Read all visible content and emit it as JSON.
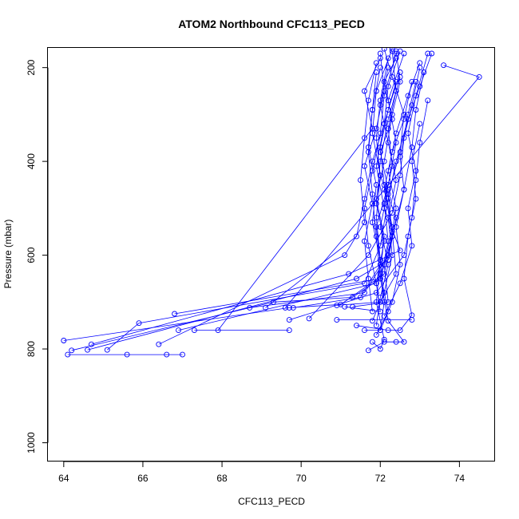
{
  "chart_data": {
    "type": "line",
    "title": "ATOM2 Northbound CFC113_PECD",
    "xlabel": "CFC113_PECD",
    "ylabel": "Pressure (mbar)",
    "xlim": [
      63.6,
      74.9
    ],
    "ylim": [
      1040,
      158
    ],
    "y_reversed": true,
    "x_ticks": [
      64,
      66,
      68,
      70,
      72,
      74
    ],
    "y_ticks": [
      200,
      400,
      600,
      800,
      1000
    ],
    "grid": false,
    "legend": "none",
    "series_color": "#0000ff",
    "series": [
      {
        "points": [
          [
            64.0,
            782
          ],
          [
            69.7,
            712
          ],
          [
            71.0,
            705
          ],
          [
            72.1,
            640
          ],
          [
            72.3,
            560
          ],
          [
            72.2,
            470
          ],
          [
            72.5,
            380
          ],
          [
            72.6,
            300
          ],
          [
            72.3,
            220
          ],
          [
            72.1,
            160
          ]
        ]
      },
      {
        "points": [
          [
            64.1,
            812
          ],
          [
            65.6,
            812
          ],
          [
            66.6,
            812
          ],
          [
            67.0,
            812
          ]
        ]
      },
      {
        "points": [
          [
            64.2,
            803
          ],
          [
            69.3,
            700
          ],
          [
            71.3,
            690
          ],
          [
            72.0,
            650
          ],
          [
            71.9,
            560
          ],
          [
            71.8,
            470
          ],
          [
            71.7,
            380
          ],
          [
            71.8,
            290
          ],
          [
            72.0,
            200
          ]
        ]
      },
      {
        "points": [
          [
            64.6,
            802
          ],
          [
            71.4,
            650
          ],
          [
            72.2,
            610
          ],
          [
            72.4,
            520
          ],
          [
            72.0,
            430
          ],
          [
            71.8,
            340
          ],
          [
            71.9,
            250
          ],
          [
            72.3,
            160
          ]
        ]
      },
      {
        "points": [
          [
            64.7,
            790
          ],
          [
            71.2,
            640
          ],
          [
            72.5,
            590
          ],
          [
            72.1,
            500
          ],
          [
            71.9,
            410
          ],
          [
            72.1,
            320
          ],
          [
            72.4,
            230
          ]
        ]
      },
      {
        "points": [
          [
            65.1,
            802
          ],
          [
            65.9,
            745
          ],
          [
            71.6,
            660
          ],
          [
            72.0,
            580
          ],
          [
            72.2,
            480
          ],
          [
            72.4,
            400
          ],
          [
            72.7,
            310
          ],
          [
            73.0,
            240
          ],
          [
            73.3,
            170
          ]
        ]
      },
      {
        "points": [
          [
            66.4,
            790
          ],
          [
            71.1,
            600
          ],
          [
            71.6,
            530
          ],
          [
            71.5,
            440
          ],
          [
            71.6,
            350
          ],
          [
            71.7,
            270
          ],
          [
            71.9,
            190
          ]
        ]
      },
      {
        "points": [
          [
            66.8,
            725
          ],
          [
            72.0,
            650
          ],
          [
            72.3,
            560
          ],
          [
            72.6,
            460
          ],
          [
            72.8,
            370
          ],
          [
            72.9,
            290
          ],
          [
            73.1,
            210
          ]
        ]
      },
      {
        "points": [
          [
            66.9,
            760
          ],
          [
            71.9,
            660
          ],
          [
            72.1,
            570
          ],
          [
            71.9,
            490
          ],
          [
            72.0,
            400
          ],
          [
            72.2,
            310
          ],
          [
            72.5,
            220
          ]
        ]
      },
      {
        "points": [
          [
            67.3,
            760
          ],
          [
            69.7,
            760
          ]
        ]
      },
      {
        "points": [
          [
            67.9,
            760
          ],
          [
            71.8,
            330
          ],
          [
            71.6,
            250
          ],
          [
            72.0,
            180
          ]
        ]
      },
      {
        "points": [
          [
            68.7,
            712
          ],
          [
            71.6,
            680
          ],
          [
            72.2,
            600
          ],
          [
            72.4,
            500
          ],
          [
            72.2,
            420
          ],
          [
            72.4,
            340
          ],
          [
            72.7,
            260
          ],
          [
            73.0,
            190
          ]
        ]
      },
      {
        "points": [
          [
            69.1,
            712
          ],
          [
            71.4,
            560
          ],
          [
            71.6,
            480
          ],
          [
            71.8,
            400
          ],
          [
            72.1,
            320
          ],
          [
            72.2,
            240
          ],
          [
            72.5,
            165
          ]
        ]
      },
      {
        "points": [
          [
            69.6,
            712
          ],
          [
            74.5,
            220
          ],
          [
            73.6,
            195
          ]
        ]
      },
      {
        "points": [
          [
            69.7,
            738
          ],
          [
            71.9,
            680
          ],
          [
            72.6,
            600
          ],
          [
            72.8,
            520
          ],
          [
            72.9,
            440
          ],
          [
            73.0,
            360
          ],
          [
            73.2,
            270
          ]
        ]
      },
      {
        "points": [
          [
            69.8,
            712
          ],
          [
            71.5,
            690
          ],
          [
            72.0,
            620
          ],
          [
            71.9,
            540
          ],
          [
            72.2,
            450
          ],
          [
            72.4,
            360
          ],
          [
            72.2,
            270
          ],
          [
            72.6,
            170
          ]
        ]
      },
      {
        "points": [
          [
            70.2,
            735
          ],
          [
            71.7,
            600
          ],
          [
            72.3,
            510
          ],
          [
            72.5,
            430
          ],
          [
            72.6,
            350
          ],
          [
            72.8,
            280
          ],
          [
            73.0,
            200
          ]
        ]
      },
      {
        "points": [
          [
            70.9,
            707
          ],
          [
            72.0,
            700
          ],
          [
            72.4,
            640
          ],
          [
            72.3,
            550
          ],
          [
            72.1,
            460
          ],
          [
            72.3,
            380
          ],
          [
            72.6,
            310
          ],
          [
            72.8,
            230
          ]
        ]
      },
      {
        "points": [
          [
            70.9,
            738
          ],
          [
            72.8,
            738
          ]
        ]
      },
      {
        "points": [
          [
            71.1,
            710
          ],
          [
            72.0,
            720
          ],
          [
            71.9,
            660
          ],
          [
            71.7,
            580
          ],
          [
            71.6,
            500
          ],
          [
            71.8,
            420
          ],
          [
            72.0,
            340
          ],
          [
            72.1,
            260
          ],
          [
            72.4,
            170
          ]
        ]
      },
      {
        "points": [
          [
            71.3,
            710
          ],
          [
            72.2,
            700
          ],
          [
            72.1,
            620
          ],
          [
            72.3,
            540
          ],
          [
            72.1,
            450
          ],
          [
            72.0,
            370
          ],
          [
            72.2,
            290
          ],
          [
            72.5,
            210
          ]
        ]
      },
      {
        "points": [
          [
            71.4,
            750
          ],
          [
            72.2,
            760
          ],
          [
            72.5,
            760
          ],
          [
            72.8,
            728
          ],
          [
            72.6,
            650
          ],
          [
            72.7,
            560
          ],
          [
            72.9,
            480
          ],
          [
            72.8,
            400
          ],
          [
            73.0,
            320
          ]
        ]
      },
      {
        "points": [
          [
            71.6,
            760
          ],
          [
            72.0,
            760
          ],
          [
            72.1,
            700
          ],
          [
            72.0,
            610
          ],
          [
            71.9,
            520
          ],
          [
            72.0,
            430
          ],
          [
            71.9,
            350
          ],
          [
            72.0,
            270
          ],
          [
            72.2,
            180
          ]
        ]
      },
      {
        "points": [
          [
            71.7,
            803
          ],
          [
            72.1,
            785
          ],
          [
            72.4,
            785
          ],
          [
            72.6,
            785
          ],
          [
            72.2,
            740
          ],
          [
            72.0,
            650
          ],
          [
            72.2,
            570
          ],
          [
            72.1,
            490
          ],
          [
            72.3,
            410
          ],
          [
            72.2,
            330
          ],
          [
            72.4,
            250
          ],
          [
            72.3,
            165
          ]
        ]
      },
      {
        "points": [
          [
            71.8,
            785
          ],
          [
            72.0,
            800
          ],
          [
            72.1,
            780
          ],
          [
            71.9,
            700
          ],
          [
            72.0,
            610
          ],
          [
            71.8,
            530
          ],
          [
            71.9,
            450
          ],
          [
            71.7,
            370
          ],
          [
            71.8,
            290
          ],
          [
            71.9,
            210
          ]
        ]
      },
      {
        "points": [
          [
            71.9,
            770
          ],
          [
            72.2,
            720
          ],
          [
            72.0,
            640
          ],
          [
            72.1,
            560
          ],
          [
            71.9,
            480
          ],
          [
            72.1,
            400
          ],
          [
            72.3,
            300
          ],
          [
            72.5,
            230
          ],
          [
            72.4,
            165
          ]
        ]
      },
      {
        "points": [
          [
            71.8,
            740
          ],
          [
            72.1,
            680
          ],
          [
            72.3,
            600
          ],
          [
            72.2,
            520
          ],
          [
            72.4,
            440
          ],
          [
            72.2,
            360
          ],
          [
            72.0,
            280
          ],
          [
            72.2,
            200
          ]
        ]
      },
      {
        "points": [
          [
            72.0,
            760
          ],
          [
            72.3,
            700
          ],
          [
            72.5,
            620
          ],
          [
            72.4,
            540
          ],
          [
            72.6,
            460
          ],
          [
            72.5,
            390
          ],
          [
            72.7,
            300
          ],
          [
            72.9,
            230
          ]
        ]
      },
      {
        "points": [
          [
            71.8,
            720
          ],
          [
            71.7,
            650
          ],
          [
            71.6,
            570
          ],
          [
            71.8,
            490
          ],
          [
            71.6,
            410
          ],
          [
            71.9,
            330
          ],
          [
            72.1,
            250
          ],
          [
            72.0,
            170
          ]
        ]
      },
      {
        "points": [
          [
            72.1,
            730
          ],
          [
            72.5,
            660
          ],
          [
            72.8,
            580
          ],
          [
            72.7,
            500
          ],
          [
            72.9,
            420
          ],
          [
            72.7,
            340
          ],
          [
            72.9,
            260
          ],
          [
            73.2,
            170
          ]
        ]
      },
      {
        "points": [
          [
            71.9,
            750
          ],
          [
            72.0,
            690
          ],
          [
            72.2,
            620
          ],
          [
            72.0,
            540
          ],
          [
            72.2,
            460
          ],
          [
            72.0,
            380
          ],
          [
            72.3,
            310
          ],
          [
            72.1,
            230
          ],
          [
            72.4,
            180
          ]
        ]
      }
    ]
  }
}
